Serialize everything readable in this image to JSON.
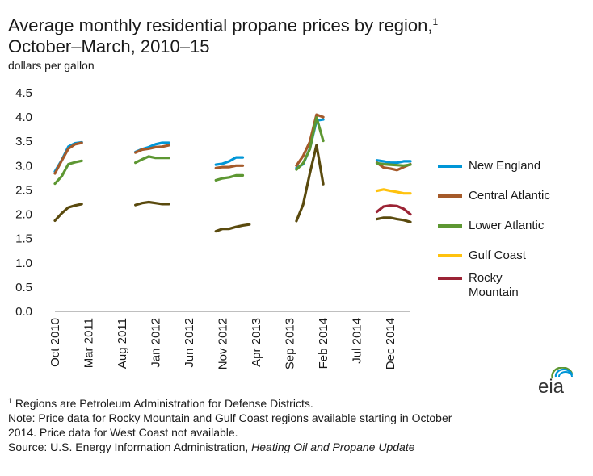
{
  "title": {
    "line1": "Average monthly residential propane prices by region,",
    "line1_sup": "1",
    "line2": "October–March, 2010–15"
  },
  "units": "dollars per gallon",
  "chart_data": {
    "type": "line",
    "ylabel": "dollars per gallon",
    "ylim": [
      0,
      4.5
    ],
    "yticks": [
      "0.0",
      "0.5",
      "1.0",
      "1.5",
      "2.0",
      "2.5",
      "3.0",
      "3.5",
      "4.0",
      "4.5"
    ],
    "xticks": [
      "Oct 2010",
      "Mar 2011",
      "Aug 2011",
      "Jan 2012",
      "Jun 2012",
      "Nov 2012",
      "Apr 2013",
      "Sep 2013",
      "Feb 2014",
      "Jul 2014",
      "Dec 2014"
    ],
    "x_start": "Oct 2010",
    "x_end": "Mar 2015",
    "grid": false,
    "legend_position": "right",
    "series": [
      {
        "name": "New England",
        "color": "#0096d7",
        "segments": [
          {
            "start": "Oct 2010",
            "values": [
              2.88,
              3.11,
              3.39,
              3.46,
              3.48
            ]
          },
          {
            "start": "Oct 2011",
            "values": [
              3.28,
              3.34,
              3.38,
              3.44,
              3.47,
              3.47
            ]
          },
          {
            "start": "Oct 2012",
            "values": [
              3.02,
              3.04,
              3.09,
              3.17,
              3.17
            ]
          },
          {
            "start": "Oct 2013",
            "values": [
              2.95,
              3.03,
              3.35,
              3.93,
              3.95
            ]
          },
          {
            "start": "Oct 2014",
            "values": [
              3.11,
              3.09,
              3.06,
              3.06,
              3.09,
              3.09
            ]
          }
        ]
      },
      {
        "name": "Central Atlantic",
        "color": "#a55a2a",
        "segments": [
          {
            "start": "Oct 2010",
            "values": [
              2.84,
              3.1,
              3.35,
              3.44,
              3.47
            ]
          },
          {
            "start": "Oct 2011",
            "values": [
              3.27,
              3.33,
              3.35,
              3.38,
              3.39,
              3.42
            ]
          },
          {
            "start": "Oct 2012",
            "values": [
              2.95,
              2.97,
              2.97,
              3.0,
              3.0
            ]
          },
          {
            "start": "Oct 2013",
            "values": [
              3.0,
              3.2,
              3.49,
              4.05,
              4.0
            ]
          },
          {
            "start": "Oct 2014",
            "values": [
              3.06,
              2.96,
              2.94,
              2.91,
              2.97,
              3.03
            ]
          }
        ]
      },
      {
        "name": "Lower Atlantic",
        "color": "#5d9732",
        "segments": [
          {
            "start": "Oct 2010",
            "values": [
              2.63,
              2.78,
              3.03,
              3.07,
              3.1
            ]
          },
          {
            "start": "Oct 2011",
            "values": [
              3.06,
              3.13,
              3.19,
              3.16,
              3.16,
              3.16
            ]
          },
          {
            "start": "Oct 2012",
            "values": [
              2.7,
              2.74,
              2.76,
              2.8,
              2.8
            ]
          },
          {
            "start": "Oct 2013",
            "values": [
              2.92,
              3.05,
              3.34,
              3.99,
              3.51
            ]
          },
          {
            "start": "Oct 2014",
            "values": [
              3.05,
              3.03,
              3.02,
              3.01,
              3.0,
              3.02
            ]
          }
        ]
      },
      {
        "name": "Gulf Coast",
        "color": "#ffc20e",
        "segments": [
          {
            "start": "Oct 2014",
            "values": [
              2.48,
              2.51,
              2.48,
              2.46,
              2.43,
              2.43
            ]
          }
        ]
      },
      {
        "name": "Rocky Mountain",
        "color": "#9b2335",
        "label_lines": [
          "Rocky",
          "Mountain"
        ],
        "segments": [
          {
            "start": "Oct 2014",
            "values": [
              2.05,
              2.16,
              2.18,
              2.17,
              2.11,
              2.0
            ]
          }
        ]
      },
      {
        "name": "",
        "color": "#5a4a0e",
        "segments": [
          {
            "start": "Oct 2010",
            "values": [
              1.87,
              2.02,
              2.14,
              2.18,
              2.21
            ]
          },
          {
            "start": "Oct 2011",
            "values": [
              2.19,
              2.23,
              2.25,
              2.23,
              2.21,
              2.21
            ]
          },
          {
            "start": "Oct 2012",
            "values": [
              1.65,
              1.7,
              1.7,
              1.74,
              1.77,
              1.79
            ]
          },
          {
            "start": "Oct 2013",
            "values": [
              1.86,
              2.2,
              2.84,
              3.42,
              2.62
            ]
          },
          {
            "start": "Oct 2014",
            "values": [
              1.9,
              1.93,
              1.93,
              1.9,
              1.88,
              1.84
            ]
          }
        ]
      }
    ]
  },
  "legend": [
    {
      "label": "New England",
      "color": "#0096d7"
    },
    {
      "label": "Central Atlantic",
      "color": "#a55a2a"
    },
    {
      "label": "Lower Atlantic",
      "color": "#5d9732"
    },
    {
      "label": "Gulf Coast",
      "color": "#ffc20e"
    },
    {
      "label": "Rocky Mountain",
      "label_lines": [
        "Rocky",
        "Mountain"
      ],
      "color": "#9b2335"
    }
  ],
  "logo": {
    "text": "eia",
    "icon": "eia-logo-icon",
    "arc_colors": [
      "#5d9732",
      "#0096d7",
      "#0096d7"
    ]
  },
  "footnotes": {
    "note1_sup": "1",
    "note1": " Regions are Petroleum Administration for Defense Districts.",
    "note2_line1": "Note: Price data for Rocky Mountain and Gulf Coast regions available starting in October",
    "note2_line2": "2014. Price data for West Coast not available.",
    "source_prefix": "Source: U.S. Energy Information Administration, ",
    "source_title": "Heating Oil and Propane Update"
  }
}
